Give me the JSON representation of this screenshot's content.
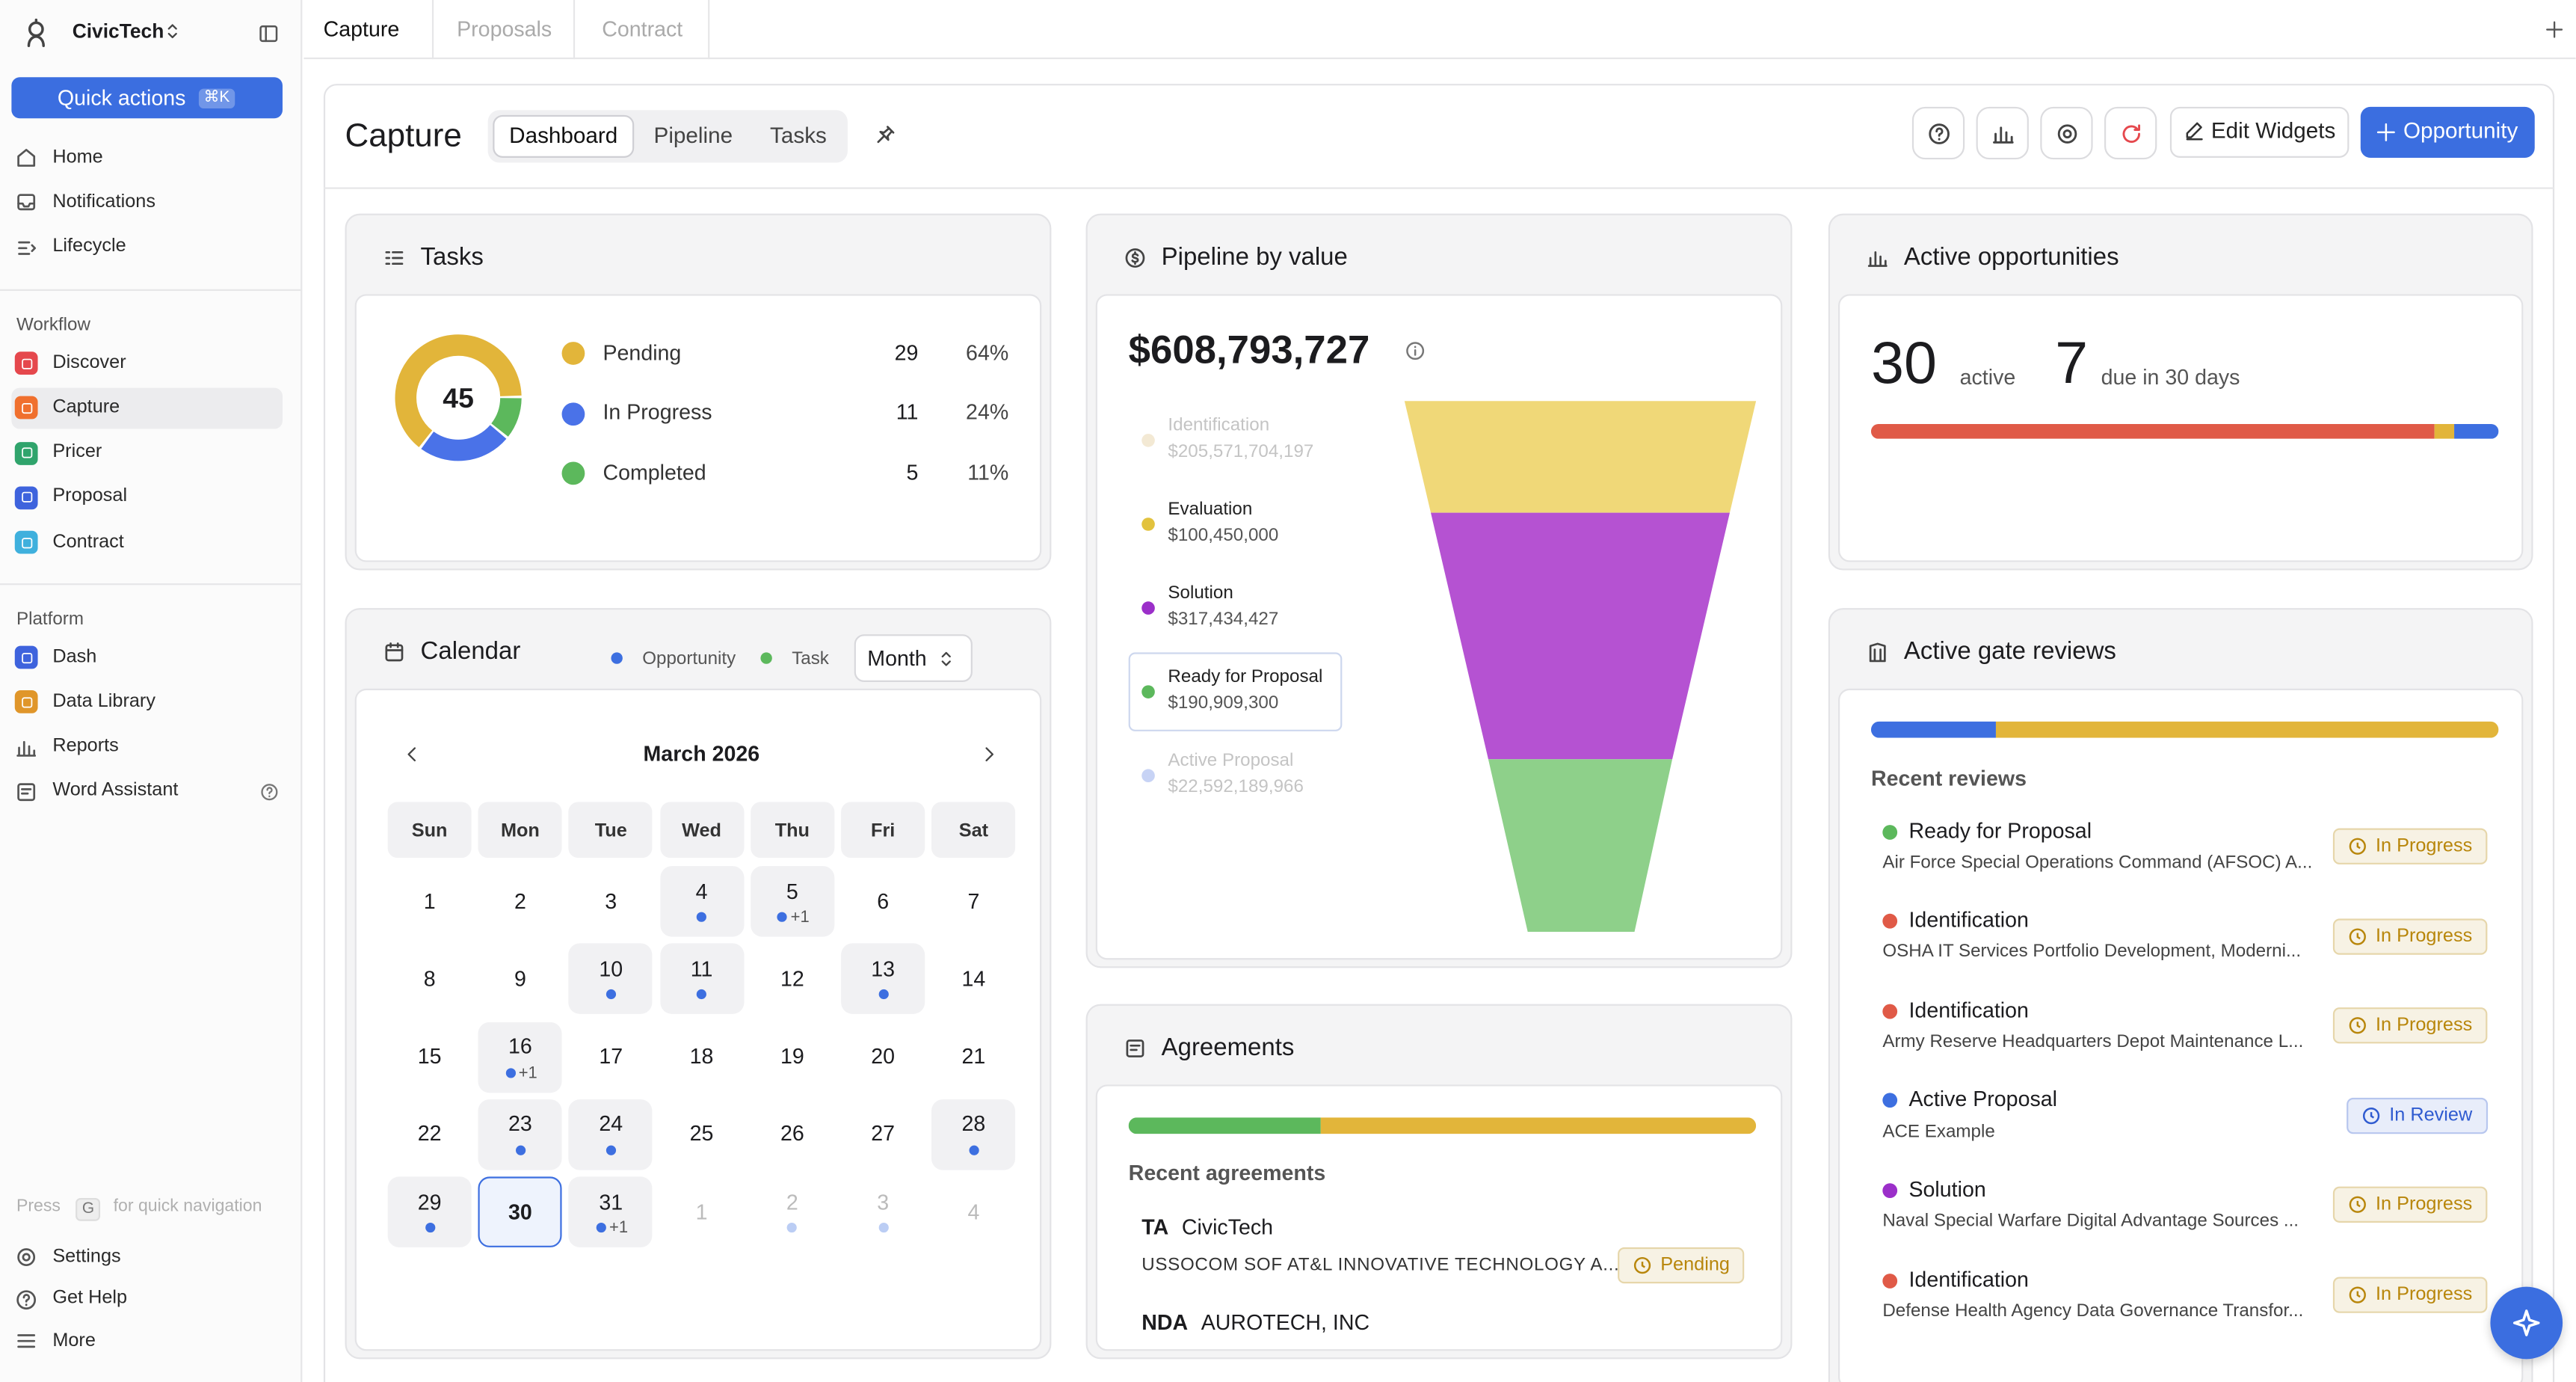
{
  "sidebar": {
    "brand": "CivicTech",
    "quick_actions": "Quick actions",
    "shortcut": "⌘K",
    "nav": [
      "Home",
      "Notifications",
      "Lifecycle"
    ],
    "sections": [
      {
        "title": "Workflow",
        "items": [
          {
            "label": "Discover",
            "color": "#e5484d"
          },
          {
            "label": "Capture",
            "color": "#f0702e",
            "active": true
          },
          {
            "label": "Pricer",
            "color": "#30a46c"
          },
          {
            "label": "Proposal",
            "color": "#3e63dd"
          },
          {
            "label": "Contract",
            "color": "#3fb0dd"
          }
        ]
      },
      {
        "title": "Platform",
        "items": [
          {
            "label": "Dash",
            "color": "#3e63dd"
          },
          {
            "label": "Data Library",
            "color": "#e0962a"
          },
          {
            "label": "Reports"
          },
          {
            "label": "Word Assistant"
          }
        ]
      }
    ],
    "hint": {
      "press": "Press",
      "key": "G",
      "text": "for quick navigation"
    },
    "bottom": [
      "Settings",
      "Get Help",
      "More"
    ]
  },
  "tabs": [
    {
      "label": "Capture",
      "active": true
    },
    {
      "label": "Proposals"
    },
    {
      "label": "Contract"
    }
  ],
  "header": {
    "title": "Capture",
    "views": [
      "Dashboard",
      "Pipeline",
      "Tasks"
    ],
    "active_view": 0,
    "edit": "Edit Widgets",
    "new": "Opportunity"
  },
  "tasks": {
    "title": "Tasks",
    "total": 45,
    "rows": [
      {
        "label": "Pending",
        "count": 29,
        "pct": "64%",
        "color": "#e2b53a"
      },
      {
        "label": "In Progress",
        "count": 11,
        "pct": "24%",
        "color": "#4a72e8"
      },
      {
        "label": "Completed",
        "count": 5,
        "pct": "11%",
        "color": "#5cb85c"
      }
    ]
  },
  "pipeline": {
    "title": "Pipeline by value",
    "total": "$608,793,727",
    "stages": [
      {
        "name": "Identification",
        "value": "$205,571,704,197",
        "color": "#e7d3a9",
        "faded": true
      },
      {
        "name": "Evaluation",
        "value": "$100,450,000",
        "color": "#e2c23e"
      },
      {
        "name": "Solution",
        "value": "$317,434,427",
        "color": "#9b2fc9"
      },
      {
        "name": "Ready for Proposal",
        "value": "$190,909,300",
        "color": "#5cb85c",
        "selected": true
      },
      {
        "name": "Active Proposal",
        "value": "$22,592,189,966",
        "color": "#8fa8ec",
        "faded": true
      }
    ]
  },
  "active": {
    "title": "Active opportunities",
    "count": 30,
    "count_label": "active",
    "due": 7,
    "due_label": "due in 30 days"
  },
  "calendar": {
    "title": "Calendar",
    "legend": [
      {
        "label": "Opportunity",
        "color": "#3d6fe0"
      },
      {
        "label": "Task",
        "color": "#5cb85c"
      }
    ],
    "view": "Month",
    "month": "March 2026",
    "weekdays": [
      "Sun",
      "Mon",
      "Tue",
      "Wed",
      "Thu",
      "Fri",
      "Sat"
    ],
    "days": [
      {
        "day": 1
      },
      {
        "day": 2
      },
      {
        "day": 3
      },
      {
        "day": 4,
        "dot": true
      },
      {
        "day": 5,
        "dot": true,
        "more": "+1"
      },
      {
        "day": 6
      },
      {
        "day": 7
      },
      {
        "day": 8
      },
      {
        "day": 9
      },
      {
        "day": 10,
        "dot": true
      },
      {
        "day": 11,
        "dot": true
      },
      {
        "day": 12
      },
      {
        "day": 13,
        "dot": true
      },
      {
        "day": 14
      },
      {
        "day": 15
      },
      {
        "day": 16,
        "dot": true,
        "more": "+1"
      },
      {
        "day": 17
      },
      {
        "day": 18
      },
      {
        "day": 19
      },
      {
        "day": 20
      },
      {
        "day": 21
      },
      {
        "day": 22
      },
      {
        "day": 23,
        "dot": true
      },
      {
        "day": 24,
        "dot": true
      },
      {
        "day": 25
      },
      {
        "day": 26
      },
      {
        "day": 27
      },
      {
        "day": 28,
        "dot": true
      },
      {
        "day": 29,
        "dot": true
      },
      {
        "day": 30,
        "today": true
      },
      {
        "day": 31,
        "dot": true,
        "more": "+1"
      },
      {
        "day": 1,
        "muted": true
      },
      {
        "day": 2,
        "muted": true,
        "dot": true
      },
      {
        "day": 3,
        "muted": true,
        "dot": true
      },
      {
        "day": 4,
        "muted": true
      }
    ]
  },
  "agreements": {
    "title": "Agreements",
    "subtitle": "Recent agreements",
    "items": [
      {
        "type": "TA",
        "party": "CivicTech",
        "name": "USSOCOM SOF AT&L INNOVATIVE TECHNOLOGY A...",
        "status": "Pending",
        "badge_color": "#b8860b"
      },
      {
        "type": "NDA",
        "party": "AUROTECH, INC"
      }
    ]
  },
  "gate_reviews": {
    "title": "Active gate reviews",
    "subtitle": "Recent reviews",
    "items": [
      {
        "stage": "Ready for Proposal",
        "color": "#5cb85c",
        "org": "Air Force Special Operations Command (AFSOC) A...",
        "status": "In Progress",
        "badge_color": "#b8860b"
      },
      {
        "stage": "Identification",
        "color": "#e05a47",
        "org": "OSHA IT Services Portfolio Development, Moderni...",
        "status": "In Progress",
        "badge_color": "#b8860b"
      },
      {
        "stage": "Identification",
        "color": "#e05a47",
        "org": "Army Reserve Headquarters Depot Maintenance L...",
        "status": "In Progress",
        "badge_color": "#b8860b"
      },
      {
        "stage": "Active Proposal",
        "color": "#3d6fe0",
        "org": "ACE Example",
        "status": "In Review",
        "badge_color": "#2f5bd0"
      },
      {
        "stage": "Solution",
        "color": "#9b2fc9",
        "org": "Naval Special Warfare Digital Advantage Sources ...",
        "status": "In Progress",
        "badge_color": "#b8860b"
      },
      {
        "stage": "Identification",
        "color": "#e05a47",
        "org": "Defense Health Agency Data Governance Transfor...",
        "status": "In Progress",
        "badge_color": "#b8860b"
      }
    ]
  }
}
